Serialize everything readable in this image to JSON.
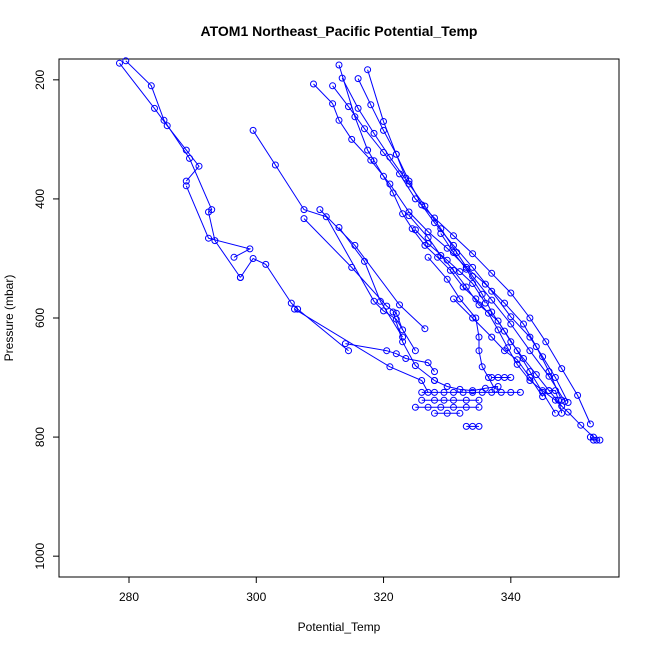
{
  "chart_data": {
    "type": "line",
    "title": "ATOM1 Northeast_Pacific Potential_Temp",
    "xlabel": "Potential_Temp",
    "ylabel": "Pressure (mbar)",
    "xlim": [
      269,
      357
    ],
    "ylim": [
      1035,
      165
    ],
    "y_inverted": true,
    "x_ticks": [
      280,
      300,
      320,
      340
    ],
    "y_ticks": [
      200,
      400,
      600,
      800,
      1000
    ],
    "grid": false,
    "marker": "open-circle",
    "color": "#0000ff",
    "series": [
      {
        "values": [
          [
            278.5,
            172
          ],
          [
            284,
            248
          ],
          [
            286,
            277
          ],
          [
            289,
            318
          ],
          [
            291,
            345
          ],
          [
            289,
            370
          ]
        ]
      },
      {
        "values": [
          [
            279.5,
            168
          ],
          [
            283.5,
            210
          ],
          [
            285.5,
            268
          ],
          [
            289.5,
            332
          ],
          [
            293,
            418
          ],
          [
            292.5,
            422
          ],
          [
            293.5,
            470
          ],
          [
            297.5,
            532
          ]
        ]
      },
      {
        "values": [
          [
            289,
            378
          ],
          [
            292.5,
            466
          ],
          [
            299,
            484
          ],
          [
            296.5,
            498
          ]
        ]
      },
      {
        "values": [
          [
            297.5,
            532
          ],
          [
            299.5,
            500
          ],
          [
            301.5,
            510
          ],
          [
            305.5,
            575
          ],
          [
            306.5,
            585
          ],
          [
            314.5,
            655
          ]
        ]
      },
      {
        "values": [
          [
            299.5,
            285
          ],
          [
            303,
            343
          ],
          [
            307.5,
            418
          ],
          [
            311,
            430
          ],
          [
            318.5,
            572
          ],
          [
            320,
            588
          ],
          [
            322,
            602
          ],
          [
            325,
            655
          ]
        ]
      },
      {
        "values": [
          [
            307.5,
            433
          ],
          [
            315,
            515
          ],
          [
            320.5,
            580
          ],
          [
            322,
            592
          ],
          [
            323,
            620
          ]
        ]
      },
      {
        "values": [
          [
            314,
            643
          ],
          [
            320.5,
            655
          ],
          [
            322,
            660
          ],
          [
            323.5,
            668
          ],
          [
            327,
            675
          ],
          [
            328,
            690
          ]
        ]
      },
      {
        "values": [
          [
            306,
            585
          ],
          [
            321,
            682
          ],
          [
            326,
            705
          ],
          [
            327,
            725
          ]
        ]
      },
      {
        "values": [
          [
            321.5,
            590
          ],
          [
            323,
            640
          ],
          [
            325,
            680
          ],
          [
            328,
            705
          ]
        ]
      },
      {
        "values": [
          [
            310,
            418
          ],
          [
            315.5,
            478
          ],
          [
            322.5,
            578
          ],
          [
            326.5,
            618
          ]
        ]
      },
      {
        "values": [
          [
            313,
            448
          ],
          [
            317,
            505
          ],
          [
            319.5,
            572
          ],
          [
            323,
            632
          ]
        ]
      },
      {
        "values": [
          [
            313,
            175
          ],
          [
            315.5,
            262
          ],
          [
            317.5,
            318
          ],
          [
            318.5,
            336
          ],
          [
            320,
            362
          ],
          [
            321.5,
            390
          ],
          [
            323,
            425
          ],
          [
            324.5,
            450
          ],
          [
            326.5,
            478
          ],
          [
            328.5,
            498
          ],
          [
            330.5,
            520
          ],
          [
            332.5,
            548
          ],
          [
            334.5,
            568
          ],
          [
            336.5,
            592
          ],
          [
            338,
            620
          ],
          [
            339.5,
            650
          ],
          [
            341,
            678
          ],
          [
            343,
            705
          ],
          [
            345,
            722
          ],
          [
            347,
            738
          ],
          [
            349,
            758
          ],
          [
            351,
            780
          ],
          [
            353,
            800
          ]
        ]
      },
      {
        "values": [
          [
            317.5,
            183
          ],
          [
            320,
            270
          ],
          [
            322,
            325
          ],
          [
            323.5,
            365
          ]
        ]
      },
      {
        "values": [
          [
            309,
            207
          ],
          [
            312,
            240
          ],
          [
            313,
            268
          ],
          [
            315,
            300
          ],
          [
            318,
            335
          ],
          [
            321,
            375
          ],
          [
            324,
            422
          ],
          [
            327,
            455
          ],
          [
            330,
            483
          ],
          [
            333,
            515
          ],
          [
            336,
            543
          ],
          [
            339,
            575
          ],
          [
            342,
            610
          ],
          [
            344,
            648
          ],
          [
            346,
            690
          ],
          [
            348,
            738
          ]
        ]
      },
      {
        "values": [
          [
            313.5,
            197
          ],
          [
            316,
            248
          ],
          [
            318.5,
            290
          ],
          [
            321,
            330
          ],
          [
            324,
            375
          ],
          [
            326.5,
            412
          ],
          [
            329,
            450
          ],
          [
            331.5,
            490
          ],
          [
            334,
            530
          ],
          [
            337,
            570
          ],
          [
            340,
            610
          ],
          [
            343,
            655
          ],
          [
            346,
            698
          ],
          [
            348.5,
            740
          ]
        ]
      },
      {
        "values": [
          [
            316,
            198
          ],
          [
            318,
            242
          ],
          [
            320,
            285
          ],
          [
            322,
            325
          ],
          [
            324,
            370
          ],
          [
            326,
            410
          ],
          [
            328,
            440
          ],
          [
            331,
            478
          ],
          [
            334,
            515
          ],
          [
            337,
            555
          ],
          [
            340,
            598
          ],
          [
            343,
            632
          ],
          [
            345,
            665
          ],
          [
            347,
            700
          ],
          [
            349,
            742
          ]
        ]
      },
      {
        "values": [
          [
            312,
            210
          ],
          [
            314.5,
            245
          ],
          [
            317,
            282
          ],
          [
            320,
            322
          ],
          [
            322.5,
            358
          ],
          [
            325,
            400
          ],
          [
            328,
            432
          ],
          [
            331,
            462
          ],
          [
            334,
            492
          ],
          [
            337,
            525
          ],
          [
            340,
            558
          ],
          [
            343,
            600
          ],
          [
            345.5,
            640
          ],
          [
            348,
            685
          ],
          [
            350.5,
            730
          ],
          [
            352.5,
            778
          ]
        ]
      },
      {
        "values": [
          [
            324,
            428
          ],
          [
            327,
            465
          ],
          [
            329,
            495
          ],
          [
            331,
            520
          ],
          [
            333,
            548
          ],
          [
            335,
            578
          ],
          [
            338,
            605
          ],
          [
            340,
            640
          ],
          [
            342,
            668
          ],
          [
            344,
            695
          ],
          [
            346,
            722
          ],
          [
            348,
            748
          ]
        ]
      },
      {
        "values": [
          [
            325,
            452
          ],
          [
            327,
            475
          ],
          [
            330,
            503
          ],
          [
            332,
            522
          ],
          [
            334,
            542
          ],
          [
            336,
            575
          ]
        ]
      },
      {
        "values": [
          [
            329,
            458
          ],
          [
            331,
            490
          ],
          [
            333,
            518
          ],
          [
            335.5,
            560
          ],
          [
            337,
            590
          ],
          [
            339,
            622
          ],
          [
            341,
            655
          ],
          [
            343,
            690
          ],
          [
            345,
            725
          ],
          [
            347,
            760
          ]
        ]
      },
      {
        "values": [
          [
            327,
            498
          ],
          [
            330,
            535
          ],
          [
            332,
            568
          ],
          [
            334.5,
            600
          ],
          [
            335,
            632
          ],
          [
            335,
            655
          ],
          [
            335.5,
            682
          ],
          [
            336.5,
            700
          ],
          [
            337.5,
            720
          ]
        ]
      },
      {
        "values": [
          [
            331,
            568
          ],
          [
            334,
            600
          ],
          [
            337,
            632
          ],
          [
            339,
            655
          ],
          [
            341,
            670
          ],
          [
            343,
            700
          ],
          [
            345,
            732
          ]
        ]
      },
      {
        "values": [
          [
            326,
            725
          ],
          [
            328,
            725
          ],
          [
            329.5,
            725
          ],
          [
            331,
            725
          ],
          [
            332.5,
            725
          ],
          [
            334,
            725
          ],
          [
            335.5,
            725
          ],
          [
            337,
            725
          ],
          [
            338.5,
            725
          ],
          [
            340,
            725
          ],
          [
            341.5,
            725
          ]
        ]
      },
      {
        "values": [
          [
            326,
            738
          ],
          [
            328,
            738
          ],
          [
            329.5,
            738
          ],
          [
            331,
            738
          ],
          [
            333,
            738
          ],
          [
            335,
            738
          ]
        ]
      },
      {
        "values": [
          [
            325,
            750
          ],
          [
            327,
            750
          ],
          [
            329,
            750
          ],
          [
            331,
            750
          ],
          [
            333,
            750
          ],
          [
            335,
            750
          ]
        ]
      },
      {
        "values": [
          [
            328,
            760
          ],
          [
            330,
            760
          ],
          [
            332,
            760
          ]
        ]
      },
      {
        "values": [
          [
            333,
            782
          ],
          [
            334,
            782
          ],
          [
            335,
            782
          ]
        ]
      },
      {
        "values": [
          [
            328,
            705
          ],
          [
            330,
            715
          ],
          [
            332,
            720
          ],
          [
            334,
            722
          ],
          [
            336,
            718
          ],
          [
            338,
            715
          ]
        ]
      },
      {
        "values": [
          [
            337,
            700
          ],
          [
            338,
            700
          ],
          [
            339,
            700
          ],
          [
            340,
            700
          ]
        ]
      },
      {
        "values": [
          [
            346,
            722
          ],
          [
            347,
            722
          ],
          [
            347.5,
            738
          ],
          [
            348,
            760
          ]
        ]
      },
      {
        "values": [
          [
            352.5,
            800
          ],
          [
            353,
            805
          ],
          [
            353.5,
            805
          ],
          [
            354,
            805
          ]
        ]
      }
    ]
  }
}
